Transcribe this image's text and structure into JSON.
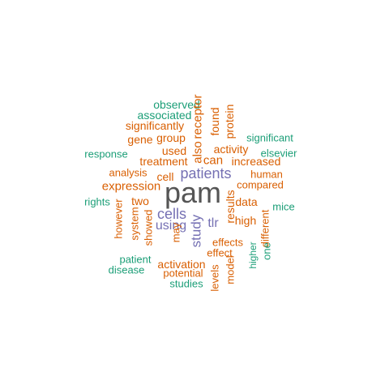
{
  "colors": {
    "top": "#555555",
    "purple": "#7570b3",
    "orange": "#d95f02",
    "green": "#1b9e77"
  },
  "words": [
    {
      "text": "pam",
      "color": "top",
      "vertical": false
    },
    {
      "text": "patients",
      "color": "purple",
      "vertical": false
    },
    {
      "text": "cells",
      "color": "purple",
      "vertical": false
    },
    {
      "text": "using",
      "color": "purple",
      "vertical": false
    },
    {
      "text": "study",
      "color": "purple",
      "vertical": true
    },
    {
      "text": "tlr",
      "color": "purple",
      "vertical": false
    },
    {
      "text": "observed",
      "color": "green",
      "vertical": false
    },
    {
      "text": "associated",
      "color": "green",
      "vertical": false
    },
    {
      "text": "significantly",
      "color": "orange",
      "vertical": false
    },
    {
      "text": "gene",
      "color": "orange",
      "vertical": false
    },
    {
      "text": "group",
      "color": "orange",
      "vertical": false
    },
    {
      "text": "used",
      "color": "orange",
      "vertical": false
    },
    {
      "text": "also",
      "color": "orange",
      "vertical": true
    },
    {
      "text": "receptor",
      "color": "orange",
      "vertical": true
    },
    {
      "text": "found",
      "color": "orange",
      "vertical": true
    },
    {
      "text": "protein",
      "color": "orange",
      "vertical": true
    },
    {
      "text": "significant",
      "color": "green",
      "vertical": false
    },
    {
      "text": "response",
      "color": "green",
      "vertical": false
    },
    {
      "text": "elsevier",
      "color": "green",
      "vertical": false
    },
    {
      "text": "activity",
      "color": "orange",
      "vertical": false
    },
    {
      "text": "treatment",
      "color": "orange",
      "vertical": false
    },
    {
      "text": "can",
      "color": "orange",
      "vertical": false
    },
    {
      "text": "increased",
      "color": "orange",
      "vertical": false
    },
    {
      "text": "analysis",
      "color": "orange",
      "vertical": false
    },
    {
      "text": "cell",
      "color": "orange",
      "vertical": false
    },
    {
      "text": "human",
      "color": "orange",
      "vertical": false
    },
    {
      "text": "expression",
      "color": "orange",
      "vertical": false
    },
    {
      "text": "compared",
      "color": "orange",
      "vertical": false
    },
    {
      "text": "rights",
      "color": "green",
      "vertical": false
    },
    {
      "text": "two",
      "color": "orange",
      "vertical": false
    },
    {
      "text": "results",
      "color": "orange",
      "vertical": true
    },
    {
      "text": "data",
      "color": "orange",
      "vertical": false
    },
    {
      "text": "mice",
      "color": "green",
      "vertical": false
    },
    {
      "text": "however",
      "color": "orange",
      "vertical": true
    },
    {
      "text": "system",
      "color": "orange",
      "vertical": true
    },
    {
      "text": "showed",
      "color": "orange",
      "vertical": true
    },
    {
      "text": "may",
      "color": "orange",
      "vertical": true
    },
    {
      "text": "high",
      "color": "orange",
      "vertical": false
    },
    {
      "text": "different",
      "color": "orange",
      "vertical": true
    },
    {
      "text": "effects",
      "color": "orange",
      "vertical": false
    },
    {
      "text": "effect",
      "color": "orange",
      "vertical": false
    },
    {
      "text": "one",
      "color": "green",
      "vertical": true
    },
    {
      "text": "higher",
      "color": "green",
      "vertical": true
    },
    {
      "text": "patient",
      "color": "green",
      "vertical": false
    },
    {
      "text": "activation",
      "color": "orange",
      "vertical": false
    },
    {
      "text": "model",
      "color": "orange",
      "vertical": true
    },
    {
      "text": "disease",
      "color": "green",
      "vertical": false
    },
    {
      "text": "potential",
      "color": "orange",
      "vertical": false
    },
    {
      "text": "levels",
      "color": "orange",
      "vertical": true
    },
    {
      "text": "studies",
      "color": "green",
      "vertical": false
    }
  ]
}
